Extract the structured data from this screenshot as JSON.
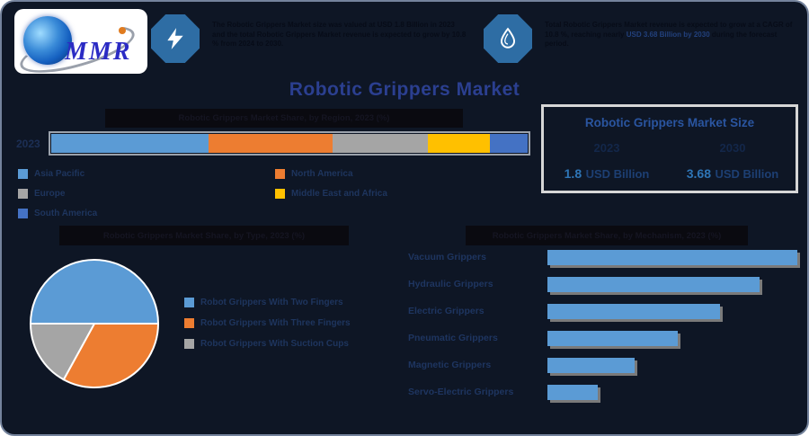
{
  "brand": {
    "logo_text": "MMR"
  },
  "page_title": "Robotic Grippers Market",
  "callouts": {
    "left": {
      "icon": "lightning-icon",
      "segments": [
        {
          "text": "The Robotic Grippers Market size was valued at USD 1.8 Billion in 2023 and the total Robotic Grippers Market revenue is expected to grow by 10.8 % from 2024 to 2030.",
          "accent": false
        }
      ]
    },
    "right": {
      "icon": "drop-icon",
      "segments": [
        {
          "text": "Total Robotic Grippers Market revenue is expected to grow at a CAGR of 10.8 %, reaching nearly ",
          "accent": false
        },
        {
          "text": "USD 3.68 Billion by 2030",
          "accent": true
        },
        {
          "text": " during the forecast period.",
          "accent": false
        }
      ]
    }
  },
  "market_size": {
    "title": "Robotic Grippers Market Size",
    "columns": [
      {
        "year": "2023",
        "value": "1.8",
        "unit": "USD Billion"
      },
      {
        "year": "2030",
        "value": "3.68",
        "unit": "USD Billion"
      }
    ]
  },
  "palette": {
    "background": "#0e1625",
    "title_blue": "#2b3f90",
    "legend_text": "#1e355e",
    "value_blue": "#2e75b6",
    "bar_blue": "#5b9bd5",
    "bar_orange": "#ed7d31",
    "bar_gray": "#a5a5a5",
    "bar_yellow": "#ffc000",
    "bar_darkblue": "#4472c4"
  },
  "chart_data": [
    {
      "type": "bar",
      "variant": "stacked-horizontal-100pct",
      "title": "Robotic Grippers Market Share, by Region, 2023 (%)",
      "categories": [
        "2023"
      ],
      "series": [
        {
          "name": "Asia Pacific",
          "values": [
            33
          ],
          "color": "#5b9bd5"
        },
        {
          "name": "North America",
          "values": [
            26
          ],
          "color": "#ed7d31"
        },
        {
          "name": "Europe",
          "values": [
            20
          ],
          "color": "#a5a5a5"
        },
        {
          "name": "Middle East and Africa",
          "values": [
            13
          ],
          "color": "#ffc000"
        },
        {
          "name": "South America",
          "values": [
            8
          ],
          "color": "#4472c4"
        }
      ],
      "xlabel": "",
      "ylabel": "",
      "xlim": [
        0,
        100
      ],
      "grid": false,
      "legend_position": "bottom"
    },
    {
      "type": "pie",
      "title": "Robotic Grippers Market Share, by Type, 2023 (%)",
      "labels": [
        "Robot Grippers With Two Fingers",
        "Robot Grippers With Three Fingers",
        "Robot Grippers With Suction Cups"
      ],
      "values": [
        50,
        33,
        17
      ],
      "colors": [
        "#5b9bd5",
        "#ed7d31",
        "#a5a5a5"
      ],
      "start_angle_clockwise_from_top_deg": 270,
      "legend_position": "right"
    },
    {
      "type": "bar",
      "variant": "horizontal",
      "title": "Robotic Grippers Market Share, by Mechanism, 2023 (%)",
      "categories": [
        "Vacuum Grippers",
        "Hydraulic Grippers",
        "Electric Grippers",
        "Pneumatic Grippers",
        "Magnetic Grippers",
        "Servo-Electric Grippers"
      ],
      "values": [
        100,
        85,
        69,
        52,
        35,
        20
      ],
      "value_note": "relative bar lengths, % of longest bar (axis unlabeled in source)",
      "color": "#5b9bd5",
      "grid": false
    }
  ]
}
